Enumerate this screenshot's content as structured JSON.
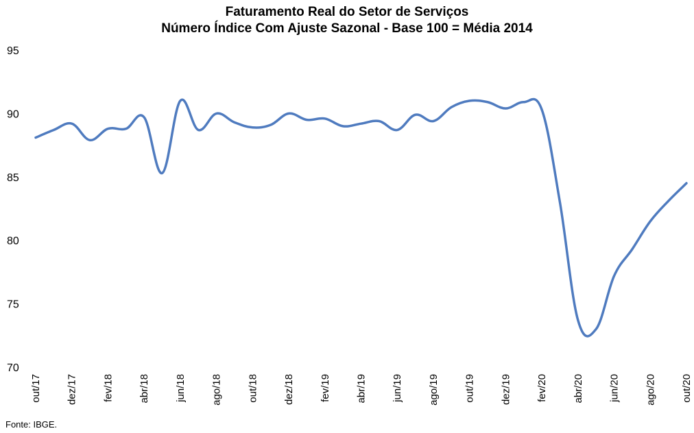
{
  "chart_data": {
    "type": "line",
    "title": "Faturamento Real do Setor de Serviços",
    "subtitle": "Número Índice Com Ajuste Sazonal - Base 100 = Média 2014",
    "xlabel": "",
    "ylabel": "",
    "ylim": [
      70,
      95
    ],
    "yticks": [
      70,
      75,
      80,
      85,
      90,
      95
    ],
    "grid": false,
    "x_tick_labels": [
      "out/17",
      "dez/17",
      "fev/18",
      "abr/18",
      "jun/18",
      "ago/18",
      "out/18",
      "dez/18",
      "fev/19",
      "abr/19",
      "jun/19",
      "ago/19",
      "out/19",
      "dez/19",
      "fev/20",
      "abr/20",
      "jun/20",
      "ago/20",
      "out/20"
    ],
    "x": [
      "out/17",
      "nov/17",
      "dez/17",
      "jan/18",
      "fev/18",
      "mar/18",
      "abr/18",
      "mai/18",
      "jun/18",
      "jul/18",
      "ago/18",
      "set/18",
      "out/18",
      "nov/18",
      "dez/18",
      "jan/19",
      "fev/19",
      "mar/19",
      "abr/19",
      "mai/19",
      "jun/19",
      "jul/19",
      "ago/19",
      "set/19",
      "out/19",
      "nov/19",
      "dez/19",
      "jan/20",
      "fev/20",
      "mar/20",
      "abr/20",
      "mai/20",
      "jun/20",
      "jul/20",
      "ago/20",
      "set/20",
      "out/20"
    ],
    "series": [
      {
        "color": "#4f7bbf",
        "values": [
          88.1,
          88.7,
          89.2,
          87.9,
          88.8,
          88.8,
          89.7,
          85.3,
          91.0,
          88.7,
          90.0,
          89.3,
          88.9,
          89.1,
          90.0,
          89.5,
          89.6,
          89.0,
          89.2,
          89.4,
          88.7,
          89.9,
          89.4,
          90.5,
          91.0,
          90.9,
          90.4,
          90.9,
          90.3,
          83.0,
          73.7,
          73.0,
          77.2,
          79.3,
          81.5,
          83.1,
          84.5
        ]
      }
    ]
  },
  "source": "Fonte: IBGE."
}
